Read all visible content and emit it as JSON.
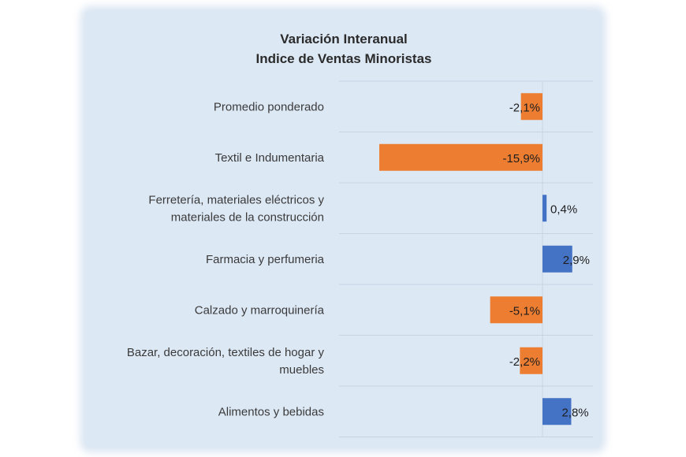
{
  "chart_data": {
    "type": "bar",
    "orientation": "horizontal",
    "title": [
      "Variación Interanual",
      "Indice de Ventas Minoristas"
    ],
    "xlabel": "",
    "ylabel": "",
    "grid": true,
    "legend": "none",
    "categories": [
      [
        "Promedio ponderado"
      ],
      [
        "Textil e Indumentaria"
      ],
      [
        "Ferretería, materiales eléctricos y",
        "materiales de la construcción"
      ],
      [
        "Farmacia y perfumeria"
      ],
      [
        "Calzado y marroquinería"
      ],
      [
        "Bazar, decoración, textiles de hogar y",
        "muebles"
      ],
      [
        "Alimentos y bebidas"
      ]
    ],
    "values": [
      -2.1,
      -15.9,
      0.4,
      2.9,
      -5.1,
      -2.2,
      2.8
    ],
    "value_labels": [
      "-2,1%",
      "-15,9%",
      "0,4%",
      "2,9%",
      "-5,1%",
      "-2,2%",
      "2,8%"
    ],
    "xlim": [
      -17,
      5
    ],
    "colors": {
      "negative": "#ed7d31",
      "positive": "#4472c4",
      "grid": "#c9d4e2",
      "background": "#dde8f5"
    }
  }
}
